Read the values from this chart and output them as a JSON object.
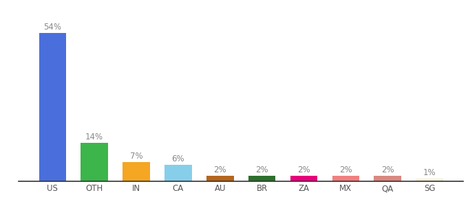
{
  "categories": [
    "US",
    "OTH",
    "IN",
    "CA",
    "AU",
    "BR",
    "ZA",
    "MX",
    "QA",
    "SG"
  ],
  "values": [
    54,
    14,
    7,
    6,
    2,
    2,
    2,
    2,
    2,
    1
  ],
  "labels": [
    "54%",
    "14%",
    "7%",
    "6%",
    "2%",
    "2%",
    "2%",
    "2%",
    "2%",
    "1%"
  ],
  "bar_colors": [
    "#4a6fdc",
    "#3cb54a",
    "#f5a623",
    "#87ceeb",
    "#b5651d",
    "#2d6e2d",
    "#e8007a",
    "#f08080",
    "#d98880",
    "#f5f0d8"
  ],
  "ylim": [
    0,
    60
  ],
  "background_color": "#ffffff",
  "label_color": "#888888",
  "label_fontsize": 8.5,
  "tick_color": "#555555",
  "tick_fontsize": 8.5,
  "bar_width": 0.65
}
